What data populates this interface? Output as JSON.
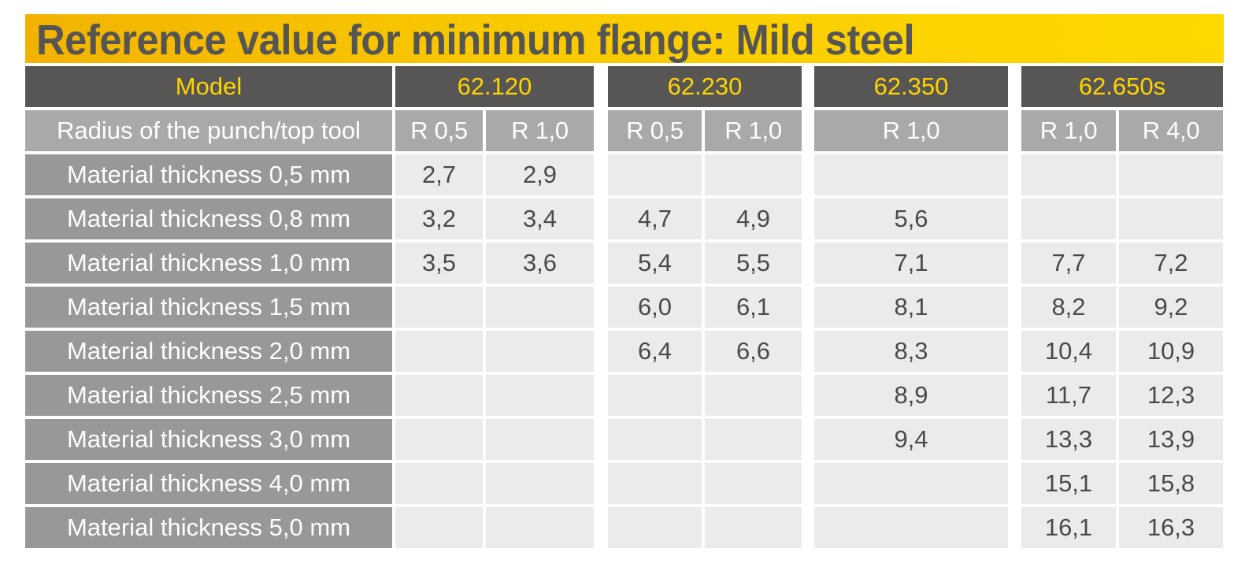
{
  "title": "Reference value for minimum flange: Mild steel",
  "header": {
    "model_label": "Model",
    "radius_label": "Radius of the punch/top tool"
  },
  "models": [
    {
      "name": "62.120",
      "radii": [
        "R 0,5",
        "R 1,0"
      ]
    },
    {
      "name": "62.230",
      "radii": [
        "R 0,5",
        "R 1,0"
      ]
    },
    {
      "name": "62.350",
      "radii": [
        "R 1,0"
      ]
    },
    {
      "name": "62.650s",
      "radii": [
        "R 1,0",
        "R 4,0"
      ]
    }
  ],
  "rows": [
    {
      "label": "Material thickness 0,5 mm",
      "values": [
        "2,7",
        "2,9",
        "",
        "",
        "",
        "",
        ""
      ]
    },
    {
      "label": "Material thickness 0,8 mm",
      "values": [
        "3,2",
        "3,4",
        "4,7",
        "4,9",
        "5,6",
        "",
        ""
      ]
    },
    {
      "label": "Material thickness 1,0 mm",
      "values": [
        "3,5",
        "3,6",
        "5,4",
        "5,5",
        "7,1",
        "7,7",
        "7,2"
      ]
    },
    {
      "label": "Material thickness 1,5 mm",
      "values": [
        "",
        "",
        "6,0",
        "6,1",
        "8,1",
        "8,2",
        "9,2"
      ]
    },
    {
      "label": "Material thickness 2,0 mm",
      "values": [
        "",
        "",
        "6,4",
        "6,6",
        "8,3",
        "10,4",
        "10,9"
      ]
    },
    {
      "label": "Material thickness 2,5 mm",
      "values": [
        "",
        "",
        "",
        "",
        "8,9",
        "11,7",
        "12,3"
      ]
    },
    {
      "label": "Material thickness 3,0 mm",
      "values": [
        "",
        "",
        "",
        "",
        "9,4",
        "13,3",
        "13,9"
      ]
    },
    {
      "label": "Material thickness 4,0 mm",
      "values": [
        "",
        "",
        "",
        "",
        "",
        "15,1",
        "15,8"
      ]
    },
    {
      "label": "Material thickness 5,0 mm",
      "values": [
        "",
        "",
        "",
        "",
        "",
        "16,1",
        "16,3"
      ]
    }
  ],
  "colors": {
    "title_bar": "#f9c900",
    "title_text": "#555555",
    "model_header_bg": "#575655",
    "model_header_text": "#ffd400",
    "radius_header_bg": "#aaa9a9",
    "row_label_bg": "#999897",
    "value_cell_bg": "#ebebeb"
  }
}
